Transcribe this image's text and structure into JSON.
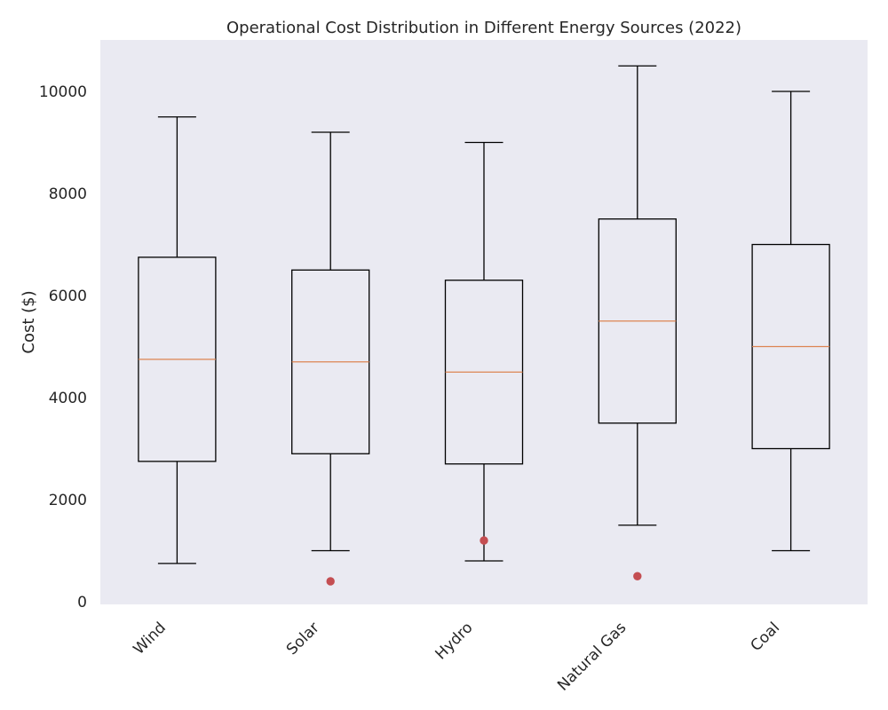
{
  "chart_data": {
    "type": "box",
    "title": "Operational Cost Distribution in Different Energy Sources (2022)",
    "xlabel": "",
    "ylabel": "Cost ($)",
    "ylim": [
      0,
      11000
    ],
    "yticks": [
      0,
      2000,
      4000,
      6000,
      8000,
      10000
    ],
    "grid": false,
    "categories": [
      "Wind",
      "Solar",
      "Hydro",
      "Natural Gas",
      "Coal"
    ],
    "boxes": [
      {
        "category": "Wind",
        "whisker_low": 750,
        "q1": 2750,
        "median": 4750,
        "q3": 6750,
        "whisker_high": 9500,
        "outliers": []
      },
      {
        "category": "Solar",
        "whisker_low": 1000,
        "q1": 2900,
        "median": 4700,
        "q3": 6500,
        "whisker_high": 9200,
        "outliers": [
          400
        ]
      },
      {
        "category": "Hydro",
        "whisker_low": 800,
        "q1": 2700,
        "median": 4500,
        "q3": 6300,
        "whisker_high": 9000,
        "outliers": [
          1200
        ]
      },
      {
        "category": "Natural Gas",
        "whisker_low": 1500,
        "q1": 3500,
        "median": 5500,
        "q3": 7500,
        "whisker_high": 10500,
        "outliers": [
          500
        ]
      },
      {
        "category": "Coal",
        "whisker_low": 1000,
        "q1": 3000,
        "median": 5000,
        "q3": 7000,
        "whisker_high": 10000,
        "outliers": []
      }
    ],
    "colors": {
      "plot_background": "#eaeaf2",
      "box_stroke": "#000000",
      "median": "#dd8452",
      "outlier": "#c44e52",
      "text": "#262626"
    }
  }
}
